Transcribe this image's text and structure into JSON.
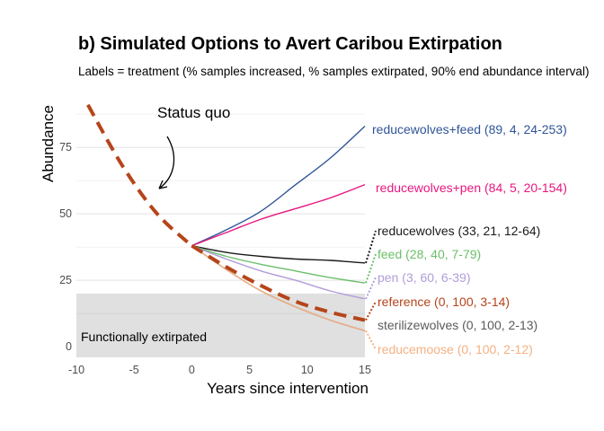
{
  "chart_data": {
    "type": "line",
    "title": "b) Simulated Options to Avert Caribou Extirpation",
    "subtitle": "Labels = treatment (% samples increased, % samples extirpated, 90% end abundance interval)",
    "xlabel": "Years since intervention",
    "ylabel": "Abundance",
    "xlim": [
      -10,
      15
    ],
    "ylim": [
      -4,
      95
    ],
    "x_ticks": [
      "-10",
      "-5",
      "0",
      "5",
      "10",
      "15"
    ],
    "y_ticks": [
      "0",
      "25",
      "50",
      "75"
    ],
    "grid": "horizontal",
    "extirpated_band": {
      "y_range": [
        0,
        20
      ],
      "label": "Functionally extirpated",
      "color": "#e0e0e0"
    },
    "annotation": {
      "text": "Status quo"
    },
    "status_quo": {
      "name": "Status quo",
      "color": "#b5451b",
      "style": "dashed",
      "x": [
        -9,
        -6,
        -3,
        0
      ],
      "y": [
        91,
        68,
        50,
        38
      ]
    },
    "series": [
      {
        "name": "reducewolves+feed",
        "label": "reducewolves+feed (89, 4, 24-253)",
        "color": "#2f5597",
        "style": "solid",
        "x": [
          0,
          3,
          6,
          9,
          12,
          15
        ],
        "y": [
          38,
          44,
          51,
          61,
          71,
          83
        ]
      },
      {
        "name": "reducewolves+pen",
        "label": "reducewolves+pen (84, 5, 20-154)",
        "color": "#e6177f",
        "style": "solid",
        "x": [
          0,
          3,
          6,
          9,
          12,
          15
        ],
        "y": [
          38,
          43,
          48,
          52,
          56,
          61
        ]
      },
      {
        "name": "reducewolves",
        "label": "reducewolves (33, 21, 12-64)",
        "color": "#1a1a1a",
        "style": "solid",
        "x": [
          0,
          3,
          6,
          9,
          12,
          15
        ],
        "y": [
          38,
          35.5,
          34,
          33,
          32.5,
          31.5
        ]
      },
      {
        "name": "feed",
        "label": "feed (28, 40, 7-79)",
        "color": "#6bbf6b",
        "style": "solid",
        "x": [
          0,
          3,
          6,
          9,
          12,
          15
        ],
        "y": [
          38,
          34,
          31,
          28.5,
          26,
          24
        ]
      },
      {
        "name": "pen",
        "label": "pen (3, 60, 6-39)",
        "color": "#b19cd9",
        "style": "solid",
        "x": [
          0,
          3,
          6,
          9,
          12,
          15
        ],
        "y": [
          38,
          33,
          28.5,
          25,
          21,
          18
        ]
      },
      {
        "name": "reference",
        "label": "reference (0, 100, 3-14)",
        "color": "#b5451b",
        "style": "dashed",
        "x": [
          0,
          3,
          6,
          9,
          12,
          15
        ],
        "y": [
          38,
          30,
          23,
          17,
          13,
          10
        ]
      },
      {
        "name": "sterilizewolves",
        "label": "sterilizewolves (0, 100, 2-13)",
        "color": "#5a5a5a",
        "style": "solid",
        "x": [
          0,
          3,
          6,
          9,
          12,
          15
        ],
        "y": [
          38,
          29,
          21,
          15,
          10,
          6
        ]
      },
      {
        "name": "reducemoose",
        "label": "reducemoose (0, 100, 2-12)",
        "color": "#f4b183",
        "style": "solid",
        "x": [
          0,
          3,
          6,
          9,
          12,
          15
        ],
        "y": [
          38,
          29,
          21,
          15,
          10,
          6
        ]
      }
    ]
  }
}
